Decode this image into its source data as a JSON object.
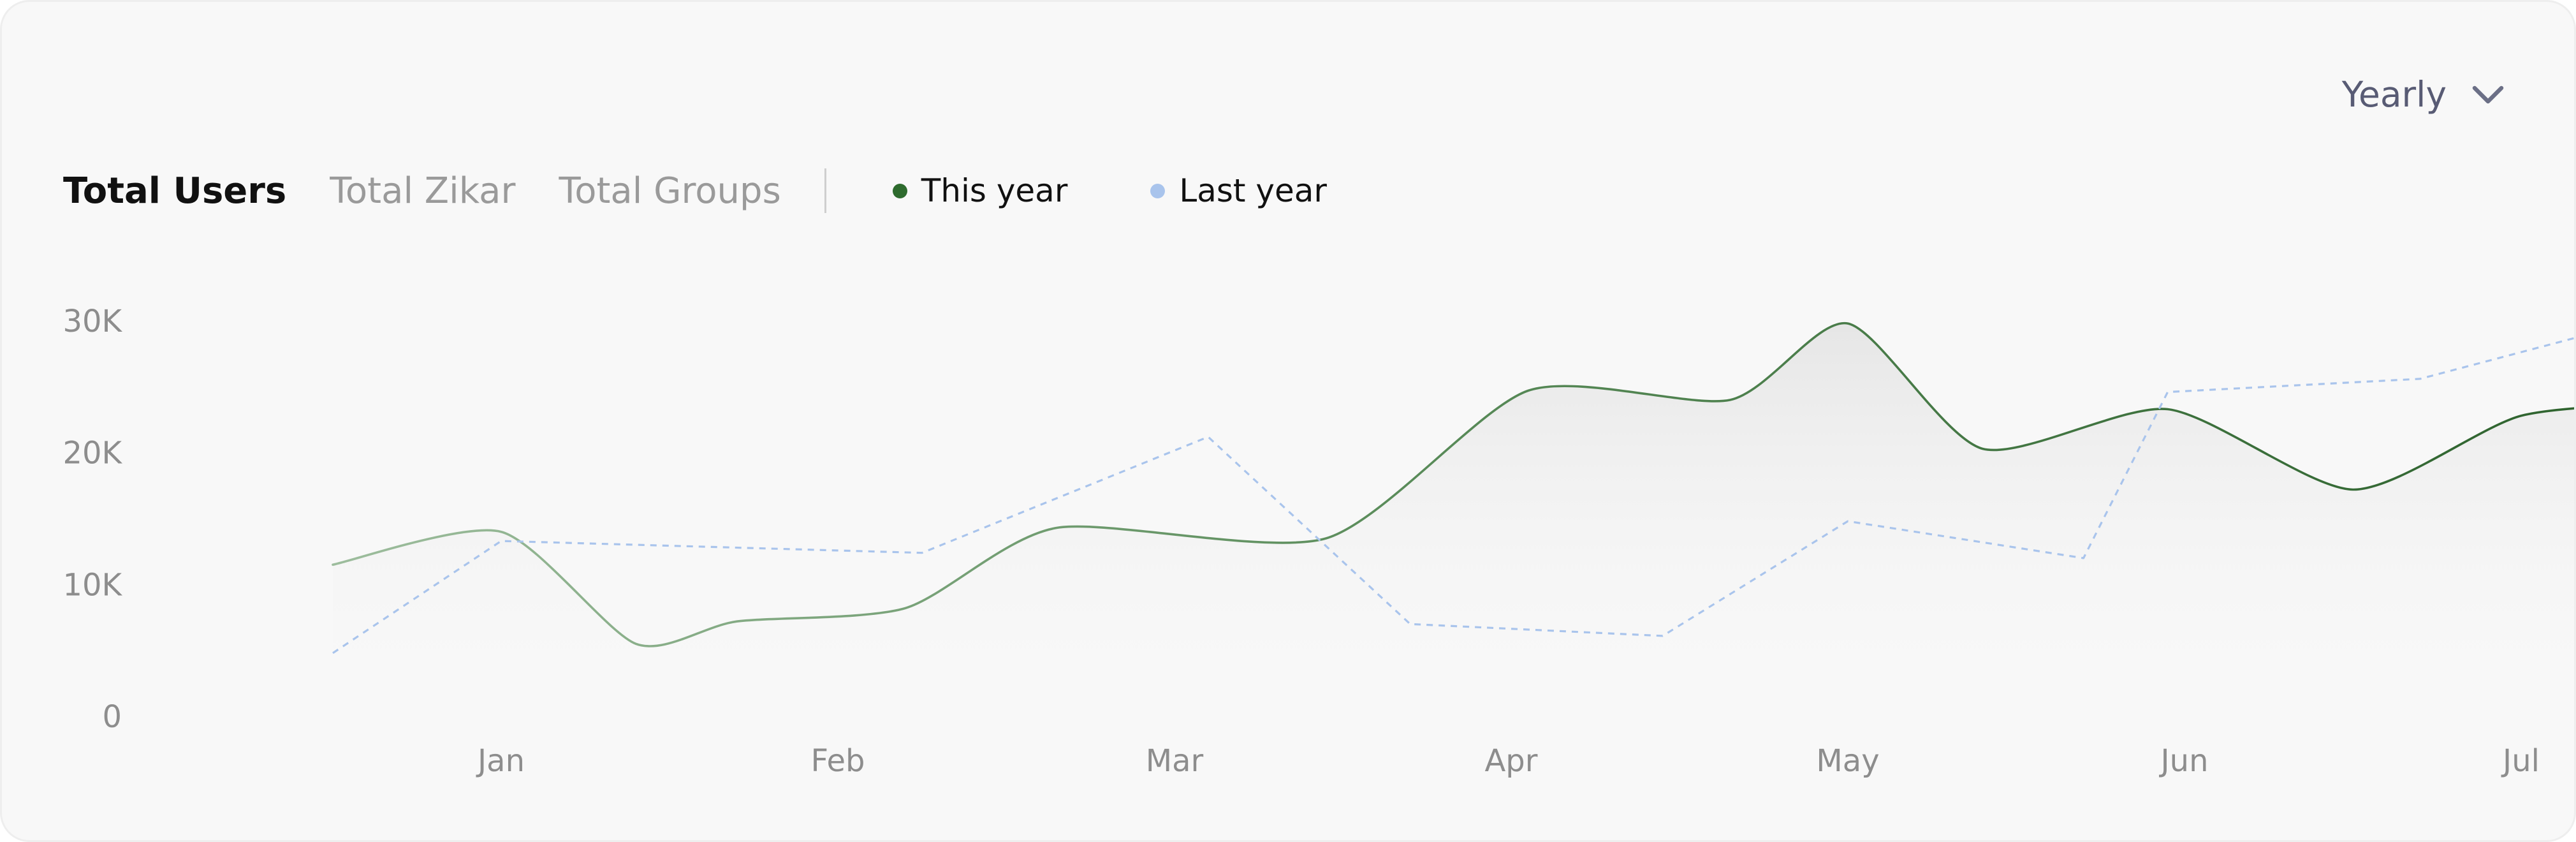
{
  "header": {
    "period_select": "Yearly",
    "chevron_icon": "chevron-down-icon"
  },
  "tabs": [
    {
      "label": "Total Users",
      "active": true
    },
    {
      "label": "Total Zikar",
      "active": false
    },
    {
      "label": "Total Groups",
      "active": false
    }
  ],
  "legend": [
    {
      "label": "This year",
      "color": "#2e6b2e"
    },
    {
      "label": "Last year",
      "color": "#a9c4ec"
    }
  ],
  "chart_data": {
    "type": "line",
    "x_ticks": [
      "Jan",
      "Feb",
      "Mar",
      "Apr",
      "May",
      "Jun",
      "Jul"
    ],
    "y_ticks": [
      "0",
      "10K",
      "20K",
      "30K"
    ],
    "ylim": [
      0,
      30000
    ],
    "x_range": [
      0.5,
      7.5
    ],
    "grid": false,
    "legend_position": "top-left",
    "series": [
      {
        "name": "This year",
        "style": "solid",
        "color": "#2e6b2e",
        "area_fill": true,
        "points": [
          [
            0.5,
            11500
          ],
          [
            1.0,
            14000
          ],
          [
            1.4,
            5500
          ],
          [
            1.7,
            7200
          ],
          [
            2.2,
            8200
          ],
          [
            2.65,
            14300
          ],
          [
            3.45,
            13500
          ],
          [
            4.05,
            24700
          ],
          [
            4.65,
            24000
          ],
          [
            5.0,
            29800
          ],
          [
            5.4,
            20300
          ],
          [
            5.95,
            23300
          ],
          [
            6.5,
            17200
          ],
          [
            7.0,
            22800
          ],
          [
            7.5,
            23800
          ]
        ]
      },
      {
        "name": "Last year",
        "style": "dashed",
        "color": "#a9c4ec",
        "points": [
          [
            0.5,
            4800
          ],
          [
            1.0,
            13300
          ],
          [
            2.25,
            12400
          ],
          [
            3.1,
            21200
          ],
          [
            3.7,
            7000
          ],
          [
            4.45,
            6100
          ],
          [
            5.0,
            14800
          ],
          [
            5.7,
            12000
          ],
          [
            5.95,
            24600
          ],
          [
            6.7,
            25600
          ],
          [
            7.5,
            31000
          ]
        ]
      }
    ]
  }
}
